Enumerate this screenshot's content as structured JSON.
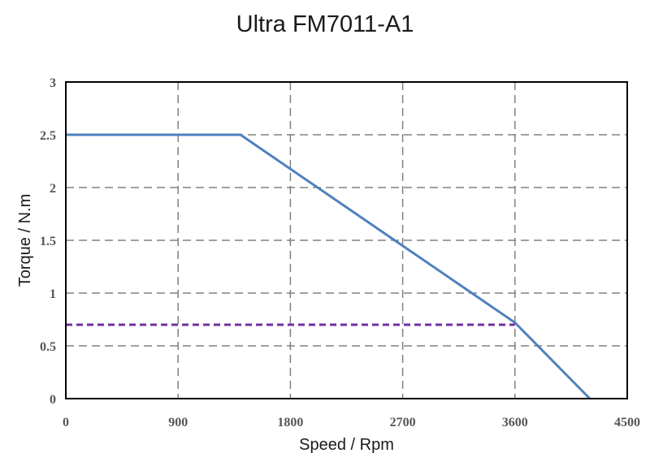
{
  "chart_data": {
    "type": "line",
    "title": "Ultra FM7011-A1",
    "xlabel": "Speed / Rpm",
    "ylabel": "Torque / N.m",
    "xlim": [
      0,
      4500
    ],
    "ylim": [
      0,
      3
    ],
    "xticks": [
      0,
      900,
      1800,
      2700,
      3600,
      4500
    ],
    "yticks": [
      0,
      0.5,
      1,
      1.5,
      2,
      2.5,
      3
    ],
    "xtick_labels": [
      "0",
      "900",
      "1800",
      "2700",
      "3600",
      "4500"
    ],
    "ytick_labels": [
      "0",
      "0.5",
      "1",
      "1.5",
      "2",
      "2.5",
      "3"
    ],
    "grid": true,
    "series": [
      {
        "style": "solid",
        "color": "#4f81bd",
        "points": [
          [
            0,
            2.5
          ],
          [
            1400,
            2.5
          ],
          [
            3600,
            0.72
          ],
          [
            4200,
            0
          ]
        ]
      },
      {
        "style": "dashed",
        "color": "#7030a0",
        "points": [
          [
            0,
            0.7
          ],
          [
            3600,
            0.7
          ]
        ]
      }
    ]
  }
}
